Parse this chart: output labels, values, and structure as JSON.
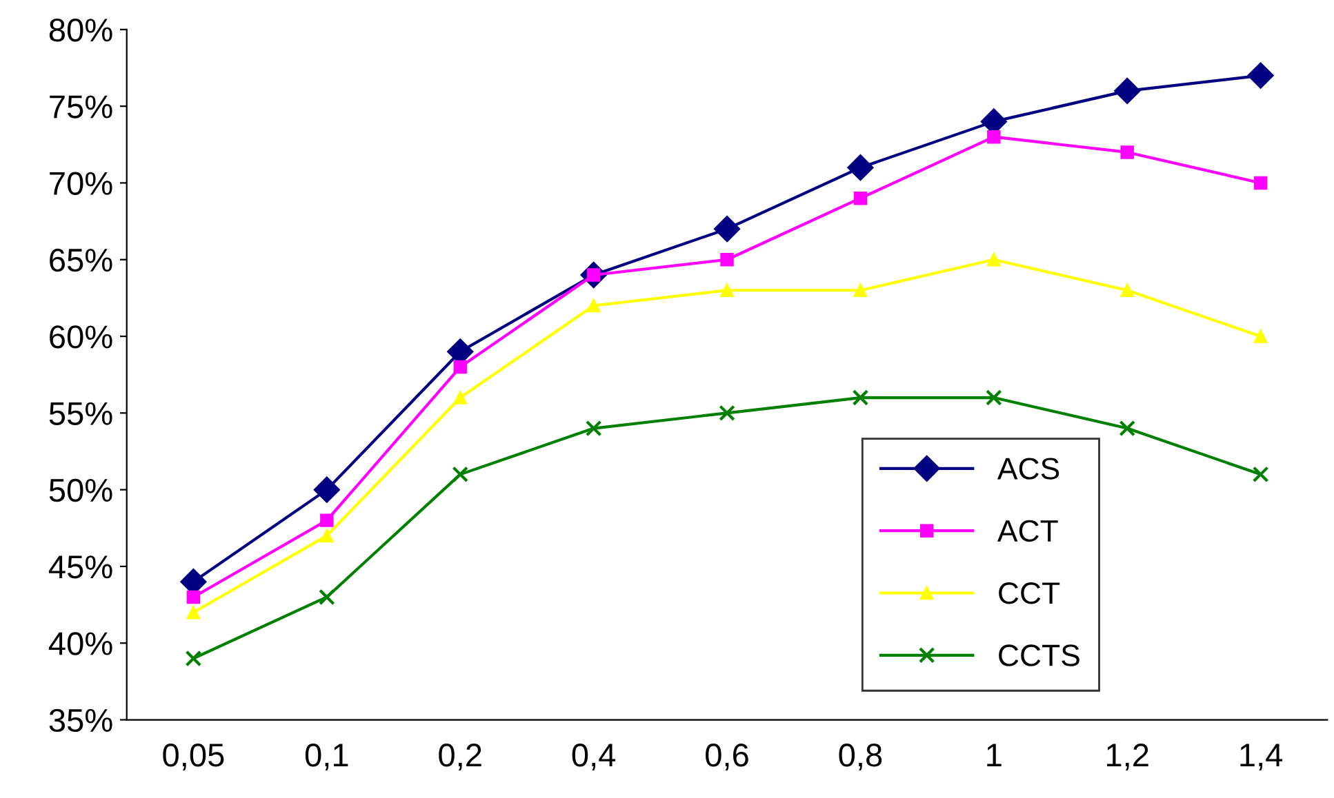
{
  "chart_data": {
    "type": "line",
    "categories": [
      "0,05",
      "0,1",
      "0,2",
      "0,4",
      "0,6",
      "0,8",
      "1",
      "1,2",
      "1,4"
    ],
    "series": [
      {
        "name": "ACS",
        "color": "#000080",
        "marker": "diamond",
        "values": [
          44,
          50,
          59,
          64,
          67,
          71,
          74,
          76,
          77
        ]
      },
      {
        "name": "ACT",
        "color": "#ff00ff",
        "marker": "square",
        "values": [
          43,
          48,
          58,
          64,
          65,
          69,
          73,
          72,
          70
        ]
      },
      {
        "name": "CCT",
        "color": "#ffff00",
        "marker": "triangle",
        "values": [
          42,
          47,
          56,
          62,
          63,
          63,
          65,
          63,
          60
        ]
      },
      {
        "name": "CCTS",
        "color": "#008000",
        "marker": "cross",
        "values": [
          39,
          43,
          51,
          54,
          55,
          56,
          56,
          54,
          51
        ]
      }
    ],
    "ylim": [
      35,
      80
    ],
    "yticks": [
      {
        "value": 35,
        "label": "35%"
      },
      {
        "value": 40,
        "label": "40%"
      },
      {
        "value": 45,
        "label": "45%"
      },
      {
        "value": 50,
        "label": "50%"
      },
      {
        "value": 55,
        "label": "55%"
      },
      {
        "value": 60,
        "label": "60%"
      },
      {
        "value": 65,
        "label": "65%"
      },
      {
        "value": 70,
        "label": "70%"
      },
      {
        "value": 75,
        "label": "75%"
      },
      {
        "value": 80,
        "label": "80%"
      }
    ],
    "grid": false,
    "legend": "bottom right",
    "line_style": "solid"
  }
}
